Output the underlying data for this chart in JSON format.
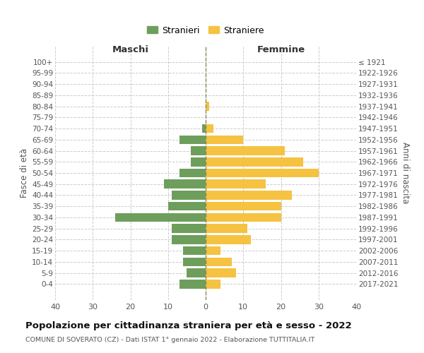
{
  "age_groups": [
    "100+",
    "95-99",
    "90-94",
    "85-89",
    "80-84",
    "75-79",
    "70-74",
    "65-69",
    "60-64",
    "55-59",
    "50-54",
    "45-49",
    "40-44",
    "35-39",
    "30-34",
    "25-29",
    "20-24",
    "15-19",
    "10-14",
    "5-9",
    "0-4"
  ],
  "birth_years": [
    "≤ 1921",
    "1922-1926",
    "1927-1931",
    "1932-1936",
    "1937-1941",
    "1942-1946",
    "1947-1951",
    "1952-1956",
    "1957-1961",
    "1962-1966",
    "1967-1971",
    "1972-1976",
    "1977-1981",
    "1982-1986",
    "1987-1991",
    "1992-1996",
    "1997-2001",
    "2002-2006",
    "2007-2011",
    "2012-2016",
    "2017-2021"
  ],
  "males": [
    0,
    0,
    0,
    0,
    0,
    0,
    1,
    7,
    4,
    4,
    7,
    11,
    9,
    10,
    24,
    9,
    9,
    6,
    6,
    5,
    7
  ],
  "females": [
    0,
    0,
    0,
    0,
    1,
    0,
    2,
    10,
    21,
    26,
    30,
    16,
    23,
    20,
    20,
    11,
    12,
    4,
    7,
    8,
    4
  ],
  "male_color": "#6e9e5c",
  "female_color": "#f5c242",
  "background_color": "#ffffff",
  "grid_color": "#cccccc",
  "dashed_line_color": "#888855",
  "title": "Popolazione per cittadinanza straniera per età e sesso - 2022",
  "subtitle": "COMUNE DI SOVERATO (CZ) - Dati ISTAT 1° gennaio 2022 - Elaborazione TUTTITALIA.IT",
  "ylabel_left": "Fasce di età",
  "ylabel_right": "Anni di nascita",
  "xlabel_left": "Maschi",
  "xlabel_right": "Femmine",
  "legend_male": "Stranieri",
  "legend_female": "Straniere",
  "xlim": 40,
  "bar_height": 0.8,
  "xticks": [
    -40,
    -30,
    -20,
    -10,
    0,
    10,
    20,
    30,
    40
  ]
}
